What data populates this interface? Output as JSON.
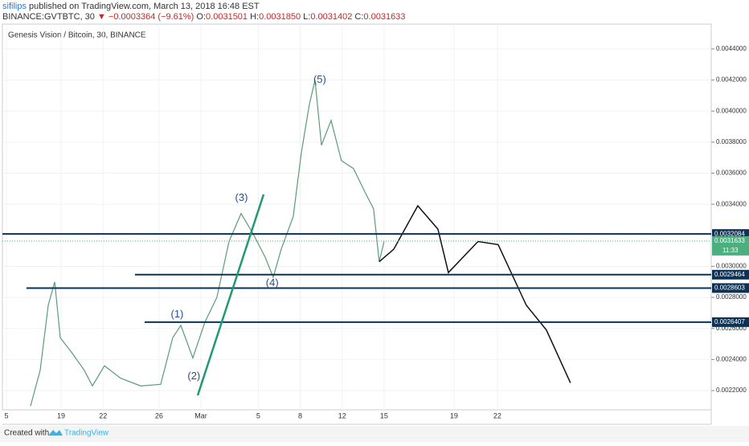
{
  "header": {
    "author": "sifilips",
    "published": "published on TradingView.com, March 13, 2018 16:48 EST",
    "symbol": "BINANCE:GVTBTC, 30",
    "change": "▼ −0.0003364 (−9.61%)",
    "o_label": "O:",
    "o": "0.0031501",
    "h_label": "H:",
    "h": "0.0031850",
    "l_label": "L:",
    "l": "0.0031402",
    "c_label": "C:",
    "c": "0.0031633"
  },
  "chart_data": {
    "type": "line",
    "title": "Genesis Vision / Bitcoin, 30, BINANCE",
    "xlim": [
      0,
      50.7
    ],
    "ylim": [
      0.002076,
      0.00456
    ],
    "xticks": [
      {
        "value": 0.29,
        "label": "5"
      },
      {
        "value": 4.2,
        "label": "19"
      },
      {
        "value": 7.2,
        "label": "22"
      },
      {
        "value": 11.2,
        "label": "26"
      },
      {
        "value": 14.2,
        "label": "Mar"
      },
      {
        "value": 18.3,
        "label": "5"
      },
      {
        "value": 21.3,
        "label": "8"
      },
      {
        "value": 24.3,
        "label": "12"
      },
      {
        "value": 27.3,
        "label": "15"
      },
      {
        "value": 32.3,
        "label": "19"
      },
      {
        "value": 35.4,
        "label": "22"
      }
    ],
    "yticks": [
      {
        "value": 0.0022,
        "label": "0.0022000"
      },
      {
        "value": 0.0024,
        "label": "0.0024000"
      },
      {
        "value": 0.0026,
        "label": "0.0026000"
      },
      {
        "value": 0.0028,
        "label": "0.0028000"
      },
      {
        "value": 0.003,
        "label": "0.0030000"
      },
      {
        "value": 0.0034,
        "label": "0.0034000"
      },
      {
        "value": 0.0036,
        "label": "0.0036000"
      },
      {
        "value": 0.0038,
        "label": "0.0038000"
      },
      {
        "value": 0.004,
        "label": "0.0040000"
      },
      {
        "value": 0.0042,
        "label": "0.0042000"
      },
      {
        "value": 0.0044,
        "label": "0.0044000"
      }
    ],
    "series": [
      {
        "color": "#5a9c78",
        "x": [
          2.01,
          2.7,
          3.28,
          3.74,
          4.14,
          5.0,
          5.86,
          6.44,
          7.3,
          8.45,
          9.89,
          11.32,
          12.18,
          12.76,
          13.62,
          14.48,
          15.34,
          16.21,
          17.07,
          17.93,
          18.79,
          19.37,
          19.94,
          20.8,
          21.38,
          21.95,
          22.36,
          22.82,
          23.51,
          24.25,
          25.11,
          25.98,
          26.55,
          26.95,
          27.3
        ],
        "values": [
          0.0021,
          0.00233,
          0.00275,
          0.0029,
          0.00254,
          0.00244,
          0.00233,
          0.00223,
          0.00236,
          0.00228,
          0.00223,
          0.00224,
          0.00254,
          0.00262,
          0.00241,
          0.00264,
          0.0028,
          0.00316,
          0.00334,
          0.00321,
          0.00306,
          0.00293,
          0.00311,
          0.00332,
          0.00373,
          0.00404,
          0.0042,
          0.00378,
          0.00394,
          0.00368,
          0.00363,
          0.00347,
          0.00337,
          0.00303,
          0.00316
        ]
      },
      {
        "color": "#111111",
        "x": [
          26.95,
          27.99,
          29.71,
          31.15,
          31.9,
          34.02,
          35.46,
          37.47,
          38.91,
          40.63
        ],
        "values": [
          0.00303,
          0.00311,
          0.00339,
          0.00324,
          0.00296,
          0.00316,
          0.00314,
          0.00275,
          0.00259,
          0.00225
        ]
      }
    ],
    "levels": [
      {
        "value": 0.0032084,
        "start": 0
      },
      {
        "value": 0.0029464,
        "start": 9.48
      },
      {
        "value": 0.0028603,
        "start": 1.72
      },
      {
        "value": 0.0026407,
        "start": 10.17
      }
    ],
    "level_color": "#0c3256",
    "last_price": 0.0031633,
    "last_color": "#4caf7f",
    "countdown": "11:33",
    "annotations": [
      {
        "text": "(1)",
        "x": 12.5,
        "y": 0.00269
      },
      {
        "text": "(2)",
        "x": 13.7,
        "y": 0.00229
      },
      {
        "text": "(3)",
        "x": 17.1,
        "y": 0.00344
      },
      {
        "text": "(4)",
        "x": 19.3,
        "y": 0.00289
      },
      {
        "text": "(5)",
        "x": 22.7,
        "y": 0.0042
      }
    ]
  },
  "footer": {
    "created": "Created with",
    "brand": "TradingView"
  }
}
